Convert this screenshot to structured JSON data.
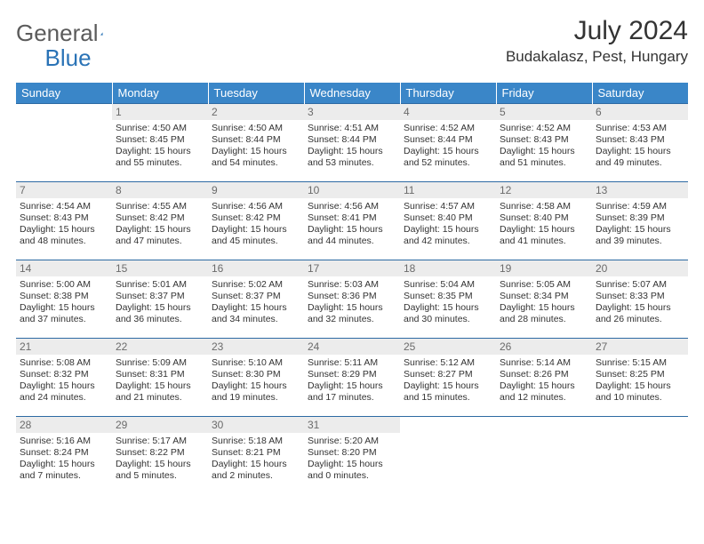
{
  "logo": {
    "text1": "General",
    "text2": "Blue"
  },
  "title": "July 2024",
  "location": "Budakalasz, Pest, Hungary",
  "colors": {
    "header_bg": "#3a86c8",
    "header_text": "#ffffff",
    "daynum_bg": "#ececec",
    "border": "#2d6aa3"
  },
  "weekdays": [
    "Sunday",
    "Monday",
    "Tuesday",
    "Wednesday",
    "Thursday",
    "Friday",
    "Saturday"
  ],
  "weeks": [
    [
      null,
      {
        "n": "1",
        "sr": "Sunrise: 4:50 AM",
        "ss": "Sunset: 8:45 PM",
        "d1": "Daylight: 15 hours",
        "d2": "and 55 minutes."
      },
      {
        "n": "2",
        "sr": "Sunrise: 4:50 AM",
        "ss": "Sunset: 8:44 PM",
        "d1": "Daylight: 15 hours",
        "d2": "and 54 minutes."
      },
      {
        "n": "3",
        "sr": "Sunrise: 4:51 AM",
        "ss": "Sunset: 8:44 PM",
        "d1": "Daylight: 15 hours",
        "d2": "and 53 minutes."
      },
      {
        "n": "4",
        "sr": "Sunrise: 4:52 AM",
        "ss": "Sunset: 8:44 PM",
        "d1": "Daylight: 15 hours",
        "d2": "and 52 minutes."
      },
      {
        "n": "5",
        "sr": "Sunrise: 4:52 AM",
        "ss": "Sunset: 8:43 PM",
        "d1": "Daylight: 15 hours",
        "d2": "and 51 minutes."
      },
      {
        "n": "6",
        "sr": "Sunrise: 4:53 AM",
        "ss": "Sunset: 8:43 PM",
        "d1": "Daylight: 15 hours",
        "d2": "and 49 minutes."
      }
    ],
    [
      {
        "n": "7",
        "sr": "Sunrise: 4:54 AM",
        "ss": "Sunset: 8:43 PM",
        "d1": "Daylight: 15 hours",
        "d2": "and 48 minutes."
      },
      {
        "n": "8",
        "sr": "Sunrise: 4:55 AM",
        "ss": "Sunset: 8:42 PM",
        "d1": "Daylight: 15 hours",
        "d2": "and 47 minutes."
      },
      {
        "n": "9",
        "sr": "Sunrise: 4:56 AM",
        "ss": "Sunset: 8:42 PM",
        "d1": "Daylight: 15 hours",
        "d2": "and 45 minutes."
      },
      {
        "n": "10",
        "sr": "Sunrise: 4:56 AM",
        "ss": "Sunset: 8:41 PM",
        "d1": "Daylight: 15 hours",
        "d2": "and 44 minutes."
      },
      {
        "n": "11",
        "sr": "Sunrise: 4:57 AM",
        "ss": "Sunset: 8:40 PM",
        "d1": "Daylight: 15 hours",
        "d2": "and 42 minutes."
      },
      {
        "n": "12",
        "sr": "Sunrise: 4:58 AM",
        "ss": "Sunset: 8:40 PM",
        "d1": "Daylight: 15 hours",
        "d2": "and 41 minutes."
      },
      {
        "n": "13",
        "sr": "Sunrise: 4:59 AM",
        "ss": "Sunset: 8:39 PM",
        "d1": "Daylight: 15 hours",
        "d2": "and 39 minutes."
      }
    ],
    [
      {
        "n": "14",
        "sr": "Sunrise: 5:00 AM",
        "ss": "Sunset: 8:38 PM",
        "d1": "Daylight: 15 hours",
        "d2": "and 37 minutes."
      },
      {
        "n": "15",
        "sr": "Sunrise: 5:01 AM",
        "ss": "Sunset: 8:37 PM",
        "d1": "Daylight: 15 hours",
        "d2": "and 36 minutes."
      },
      {
        "n": "16",
        "sr": "Sunrise: 5:02 AM",
        "ss": "Sunset: 8:37 PM",
        "d1": "Daylight: 15 hours",
        "d2": "and 34 minutes."
      },
      {
        "n": "17",
        "sr": "Sunrise: 5:03 AM",
        "ss": "Sunset: 8:36 PM",
        "d1": "Daylight: 15 hours",
        "d2": "and 32 minutes."
      },
      {
        "n": "18",
        "sr": "Sunrise: 5:04 AM",
        "ss": "Sunset: 8:35 PM",
        "d1": "Daylight: 15 hours",
        "d2": "and 30 minutes."
      },
      {
        "n": "19",
        "sr": "Sunrise: 5:05 AM",
        "ss": "Sunset: 8:34 PM",
        "d1": "Daylight: 15 hours",
        "d2": "and 28 minutes."
      },
      {
        "n": "20",
        "sr": "Sunrise: 5:07 AM",
        "ss": "Sunset: 8:33 PM",
        "d1": "Daylight: 15 hours",
        "d2": "and 26 minutes."
      }
    ],
    [
      {
        "n": "21",
        "sr": "Sunrise: 5:08 AM",
        "ss": "Sunset: 8:32 PM",
        "d1": "Daylight: 15 hours",
        "d2": "and 24 minutes."
      },
      {
        "n": "22",
        "sr": "Sunrise: 5:09 AM",
        "ss": "Sunset: 8:31 PM",
        "d1": "Daylight: 15 hours",
        "d2": "and 21 minutes."
      },
      {
        "n": "23",
        "sr": "Sunrise: 5:10 AM",
        "ss": "Sunset: 8:30 PM",
        "d1": "Daylight: 15 hours",
        "d2": "and 19 minutes."
      },
      {
        "n": "24",
        "sr": "Sunrise: 5:11 AM",
        "ss": "Sunset: 8:29 PM",
        "d1": "Daylight: 15 hours",
        "d2": "and 17 minutes."
      },
      {
        "n": "25",
        "sr": "Sunrise: 5:12 AM",
        "ss": "Sunset: 8:27 PM",
        "d1": "Daylight: 15 hours",
        "d2": "and 15 minutes."
      },
      {
        "n": "26",
        "sr": "Sunrise: 5:14 AM",
        "ss": "Sunset: 8:26 PM",
        "d1": "Daylight: 15 hours",
        "d2": "and 12 minutes."
      },
      {
        "n": "27",
        "sr": "Sunrise: 5:15 AM",
        "ss": "Sunset: 8:25 PM",
        "d1": "Daylight: 15 hours",
        "d2": "and 10 minutes."
      }
    ],
    [
      {
        "n": "28",
        "sr": "Sunrise: 5:16 AM",
        "ss": "Sunset: 8:24 PM",
        "d1": "Daylight: 15 hours",
        "d2": "and 7 minutes."
      },
      {
        "n": "29",
        "sr": "Sunrise: 5:17 AM",
        "ss": "Sunset: 8:22 PM",
        "d1": "Daylight: 15 hours",
        "d2": "and 5 minutes."
      },
      {
        "n": "30",
        "sr": "Sunrise: 5:18 AM",
        "ss": "Sunset: 8:21 PM",
        "d1": "Daylight: 15 hours",
        "d2": "and 2 minutes."
      },
      {
        "n": "31",
        "sr": "Sunrise: 5:20 AM",
        "ss": "Sunset: 8:20 PM",
        "d1": "Daylight: 15 hours",
        "d2": "and 0 minutes."
      },
      null,
      null,
      null
    ]
  ]
}
